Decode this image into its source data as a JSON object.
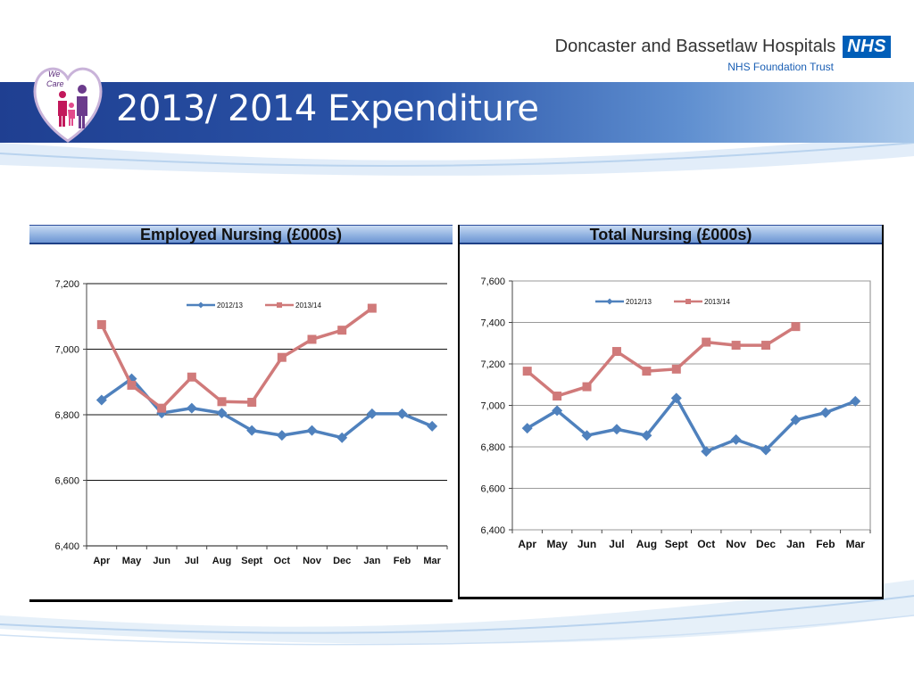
{
  "header": {
    "title": "2013/ 2014 Expenditure",
    "logo_text": [
      "We",
      "Care"
    ],
    "org_name": "Doncaster and Bassetlaw Hospitals",
    "nhs_badge": "NHS",
    "org_subtitle": "NHS Foundation Trust"
  },
  "colors": {
    "banner": "#2b55a9",
    "series_2012": "#4f81bd",
    "series_2013": "#d07a7a",
    "nhs_blue": "#005EB8"
  },
  "chart_data": [
    {
      "type": "line",
      "title": "Employed Nursing (£000s)",
      "categories": [
        "Apr",
        "May",
        "Jun",
        "Jul",
        "Aug",
        "Sept",
        "Oct",
        "Nov",
        "Dec",
        "Jan",
        "Feb",
        "Mar"
      ],
      "ylim": [
        6400,
        7200
      ],
      "yticks": [
        "7,200",
        "7,000",
        "6,800",
        "6,600",
        "6,400"
      ],
      "ytick_values": [
        7200,
        7000,
        6800,
        6600,
        6400
      ],
      "grid": "horizontal",
      "legend": "top",
      "series": [
        {
          "name": "2012/13",
          "values": [
            6845,
            6910,
            6805,
            6820,
            6805,
            6752,
            6737,
            6752,
            6730,
            6803,
            6803,
            6765
          ]
        },
        {
          "name": "2013/14",
          "values": [
            7075,
            6890,
            6820,
            6915,
            6840,
            6838,
            6975,
            7030,
            7058,
            7125,
            null,
            null
          ]
        }
      ]
    },
    {
      "type": "line",
      "title": "Total Nursing (£000s)",
      "categories": [
        "Apr",
        "May",
        "Jun",
        "Jul",
        "Aug",
        "Sept",
        "Oct",
        "Nov",
        "Dec",
        "Jan",
        "Feb",
        "Mar"
      ],
      "ylim": [
        6400,
        7600
      ],
      "yticks": [
        "7,600",
        "7,400",
        "7,200",
        "7,000",
        "6,800",
        "6,600",
        "6,400"
      ],
      "ytick_values": [
        7600,
        7400,
        7200,
        7000,
        6800,
        6600,
        6400
      ],
      "grid": "horizontal",
      "legend": "top",
      "series": [
        {
          "name": "2012/13",
          "values": [
            6890,
            6975,
            6855,
            6885,
            6855,
            7035,
            6778,
            6835,
            6785,
            6930,
            6965,
            7020
          ]
        },
        {
          "name": "2013/14",
          "values": [
            7165,
            7045,
            7090,
            7260,
            7165,
            7175,
            7305,
            7290,
            7290,
            7380,
            null,
            null
          ]
        }
      ]
    }
  ]
}
